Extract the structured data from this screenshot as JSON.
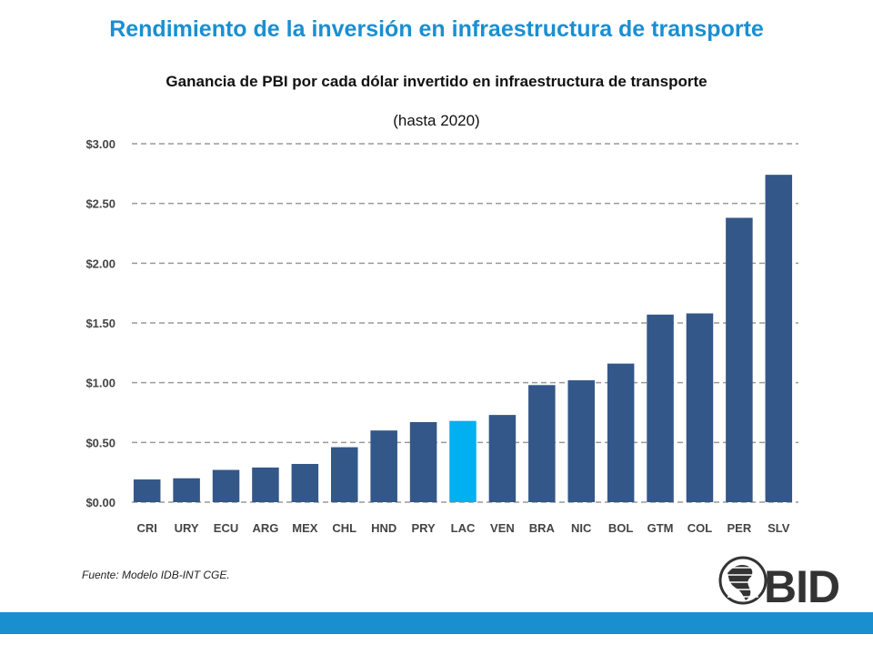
{
  "slide": {
    "title": "Rendimiento de la inversión en infraestructura de transporte",
    "source": "Fuente: Modelo IDB-INT CGE.",
    "logo_text": "BID",
    "accent_color": "#1a8fd0"
  },
  "chart_data": {
    "type": "bar",
    "title": "Ganancia de PBI por cada dólar invertido en infraestructura de transporte",
    "subtitle": "(hasta 2020)",
    "xlabel": "",
    "ylabel": "",
    "ylim": [
      0,
      3
    ],
    "yticks": [
      0,
      0.5,
      1,
      1.5,
      2,
      2.5,
      3
    ],
    "ytick_labels": [
      "$0.00",
      "$0.50",
      "$1.00",
      "$1.50",
      "$2.00",
      "$2.50",
      "$3.00"
    ],
    "grid": true,
    "categories": [
      "CRI",
      "URY",
      "ECU",
      "ARG",
      "MEX",
      "CHL",
      "HND",
      "PRY",
      "LAC",
      "VEN",
      "BRA",
      "NIC",
      "BOL",
      "GTM",
      "COL",
      "PER",
      "SLV"
    ],
    "values": [
      0.19,
      0.2,
      0.27,
      0.29,
      0.32,
      0.46,
      0.6,
      0.67,
      0.68,
      0.73,
      0.98,
      1.02,
      1.16,
      1.57,
      1.58,
      2.38,
      2.74
    ],
    "bar_color": "#335788",
    "highlight_color": "#00b0f0",
    "highlight_category": "LAC"
  }
}
